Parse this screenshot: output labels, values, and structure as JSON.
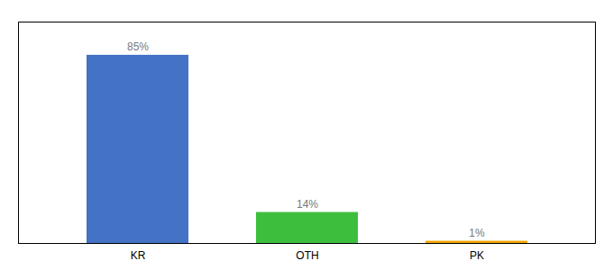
{
  "chart_data": {
    "type": "bar",
    "categories": [
      "KR",
      "OTH",
      "PK"
    ],
    "values": [
      85,
      14,
      1
    ],
    "value_labels": [
      "85%",
      "14%",
      "1%"
    ],
    "colors": [
      "#4472c4",
      "#3dbf3d",
      "#f0a500"
    ],
    "ylim": [
      0,
      100
    ],
    "yticks": [],
    "tick_labels": "x",
    "data_labels": true,
    "grid": false
  }
}
